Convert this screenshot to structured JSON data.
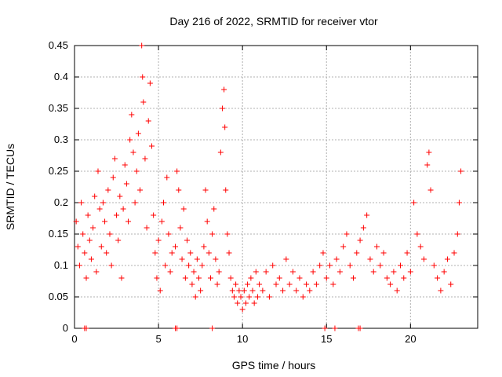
{
  "chart_data": {
    "type": "scatter",
    "title": "Day 216 of 2022, SRMTID for receiver vtor",
    "xlabel": "GPS time / hours",
    "ylabel": "SRMTID / TECUs",
    "xlim": [
      0,
      24
    ],
    "ylim": [
      0,
      0.45
    ],
    "x_ticks": [
      0,
      5,
      10,
      15,
      20
    ],
    "x_tick_labels": [
      "0",
      "5",
      "10",
      "15",
      "20"
    ],
    "y_ticks": [
      0,
      0.05,
      0.1,
      0.15,
      0.2,
      0.25,
      0.3,
      0.35,
      0.4,
      0.45
    ],
    "y_tick_labels": [
      "0",
      "0.05",
      "0.1",
      "0.15",
      "0.2",
      "0.25",
      "0.3",
      "0.35",
      "0.4",
      "0.45"
    ],
    "grid": true,
    "legend": "none",
    "marker": "+",
    "series": [
      {
        "color": "#ff0000",
        "points": [
          [
            0.1,
            0.17
          ],
          [
            0.2,
            0.13
          ],
          [
            0.3,
            0.1
          ],
          [
            0.4,
            0.2
          ],
          [
            0.5,
            0.15
          ],
          [
            0.6,
            0.12
          ],
          [
            0.7,
            0.08
          ],
          [
            0.8,
            0.18
          ],
          [
            0.9,
            0.14
          ],
          [
            1.0,
            0.11
          ],
          [
            1.1,
            0.16
          ],
          [
            1.2,
            0.21
          ],
          [
            1.3,
            0.09
          ],
          [
            1.4,
            0.25
          ],
          [
            1.5,
            0.19
          ],
          [
            1.6,
            0.13
          ],
          [
            1.7,
            0.2
          ],
          [
            1.8,
            0.17
          ],
          [
            1.9,
            0.12
          ],
          [
            2.0,
            0.22
          ],
          [
            2.1,
            0.15
          ],
          [
            2.2,
            0.1
          ],
          [
            2.3,
            0.24
          ],
          [
            2.4,
            0.27
          ],
          [
            2.5,
            0.18
          ],
          [
            2.6,
            0.14
          ],
          [
            2.7,
            0.21
          ],
          [
            2.8,
            0.08
          ],
          [
            2.9,
            0.19
          ],
          [
            3.0,
            0.26
          ],
          [
            3.1,
            0.23
          ],
          [
            3.2,
            0.17
          ],
          [
            3.3,
            0.3
          ],
          [
            3.4,
            0.34
          ],
          [
            3.5,
            0.28
          ],
          [
            3.6,
            0.2
          ],
          [
            3.7,
            0.25
          ],
          [
            3.8,
            0.31
          ],
          [
            3.9,
            0.22
          ],
          [
            4.0,
            0.45
          ],
          [
            4.05,
            0.4
          ],
          [
            4.1,
            0.36
          ],
          [
            4.2,
            0.27
          ],
          [
            4.3,
            0.16
          ],
          [
            4.4,
            0.33
          ],
          [
            4.5,
            0.39
          ],
          [
            4.6,
            0.29
          ],
          [
            4.7,
            0.18
          ],
          [
            4.8,
            0.12
          ],
          [
            4.9,
            0.08
          ],
          [
            5.0,
            0.14
          ],
          [
            5.1,
            0.06
          ],
          [
            5.2,
            0.17
          ],
          [
            5.3,
            0.2
          ],
          [
            5.4,
            0.1
          ],
          [
            5.5,
            0.24
          ],
          [
            5.6,
            0.15
          ],
          [
            5.7,
            0.09
          ],
          [
            5.8,
            0.12
          ],
          [
            6.0,
            0.13
          ],
          [
            6.1,
            0.25
          ],
          [
            6.2,
            0.22
          ],
          [
            6.3,
            0.16
          ],
          [
            6.4,
            0.11
          ],
          [
            6.5,
            0.19
          ],
          [
            6.6,
            0.08
          ],
          [
            6.7,
            0.14
          ],
          [
            6.8,
            0.1
          ],
          [
            6.9,
            0.12
          ],
          [
            7.0,
            0.07
          ],
          [
            7.1,
            0.09
          ],
          [
            7.2,
            0.05
          ],
          [
            7.3,
            0.11
          ],
          [
            7.4,
            0.08
          ],
          [
            7.5,
            0.06
          ],
          [
            7.6,
            0.1
          ],
          [
            7.7,
            0.13
          ],
          [
            7.8,
            0.22
          ],
          [
            7.9,
            0.17
          ],
          [
            8.0,
            0.12
          ],
          [
            8.1,
            0.08
          ],
          [
            8.2,
            0.15
          ],
          [
            8.3,
            0.19
          ],
          [
            8.4,
            0.11
          ],
          [
            8.5,
            0.07
          ],
          [
            8.6,
            0.09
          ],
          [
            8.7,
            0.28
          ],
          [
            8.8,
            0.35
          ],
          [
            8.9,
            0.38
          ],
          [
            8.95,
            0.32
          ],
          [
            9.0,
            0.22
          ],
          [
            9.1,
            0.15
          ],
          [
            9.2,
            0.12
          ],
          [
            9.3,
            0.08
          ],
          [
            9.4,
            0.06
          ],
          [
            9.5,
            0.05
          ],
          [
            9.6,
            0.07
          ],
          [
            9.7,
            0.04
          ],
          [
            9.8,
            0.06
          ],
          [
            9.9,
            0.05
          ],
          [
            10.0,
            0.03
          ],
          [
            10.1,
            0.06
          ],
          [
            10.2,
            0.04
          ],
          [
            10.3,
            0.07
          ],
          [
            10.4,
            0.05
          ],
          [
            10.5,
            0.08
          ],
          [
            10.6,
            0.06
          ],
          [
            10.7,
            0.04
          ],
          [
            10.8,
            0.09
          ],
          [
            10.9,
            0.05
          ],
          [
            11.0,
            0.07
          ],
          [
            11.2,
            0.06
          ],
          [
            11.4,
            0.09
          ],
          [
            11.6,
            0.05
          ],
          [
            11.8,
            0.1
          ],
          [
            12.0,
            0.07
          ],
          [
            12.2,
            0.08
          ],
          [
            12.4,
            0.06
          ],
          [
            12.6,
            0.11
          ],
          [
            12.8,
            0.07
          ],
          [
            13.0,
            0.09
          ],
          [
            13.2,
            0.06
          ],
          [
            13.4,
            0.08
          ],
          [
            13.6,
            0.05
          ],
          [
            13.8,
            0.07
          ],
          [
            14.0,
            0.06
          ],
          [
            14.2,
            0.09
          ],
          [
            14.4,
            0.07
          ],
          [
            14.6,
            0.1
          ],
          [
            14.8,
            0.12
          ],
          [
            15.0,
            0.08
          ],
          [
            15.2,
            0.1
          ],
          [
            15.4,
            0.07
          ],
          [
            15.6,
            0.11
          ],
          [
            15.8,
            0.09
          ],
          [
            16.0,
            0.13
          ],
          [
            16.2,
            0.15
          ],
          [
            16.4,
            0.1
          ],
          [
            16.6,
            0.08
          ],
          [
            16.8,
            0.12
          ],
          [
            17.0,
            0.14
          ],
          [
            17.2,
            0.16
          ],
          [
            17.4,
            0.18
          ],
          [
            17.6,
            0.11
          ],
          [
            17.8,
            0.09
          ],
          [
            18.0,
            0.13
          ],
          [
            18.2,
            0.1
          ],
          [
            18.4,
            0.12
          ],
          [
            18.6,
            0.08
          ],
          [
            18.8,
            0.07
          ],
          [
            19.0,
            0.09
          ],
          [
            19.2,
            0.06
          ],
          [
            19.4,
            0.1
          ],
          [
            19.6,
            0.08
          ],
          [
            19.8,
            0.12
          ],
          [
            20.0,
            0.09
          ],
          [
            20.2,
            0.2
          ],
          [
            20.4,
            0.15
          ],
          [
            20.6,
            0.13
          ],
          [
            20.8,
            0.11
          ],
          [
            21.0,
            0.26
          ],
          [
            21.1,
            0.28
          ],
          [
            21.2,
            0.22
          ],
          [
            21.4,
            0.1
          ],
          [
            21.6,
            0.08
          ],
          [
            21.8,
            0.06
          ],
          [
            22.0,
            0.09
          ],
          [
            22.2,
            0.11
          ],
          [
            22.4,
            0.07
          ],
          [
            22.6,
            0.12
          ],
          [
            22.8,
            0.15
          ],
          [
            22.9,
            0.2
          ],
          [
            23.0,
            0.25
          ]
        ]
      }
    ],
    "zero_markers_x": [
      0.6,
      0.7,
      6.0,
      6.1,
      8.2,
      14.9,
      15.5,
      16.9,
      17.0
    ]
  }
}
